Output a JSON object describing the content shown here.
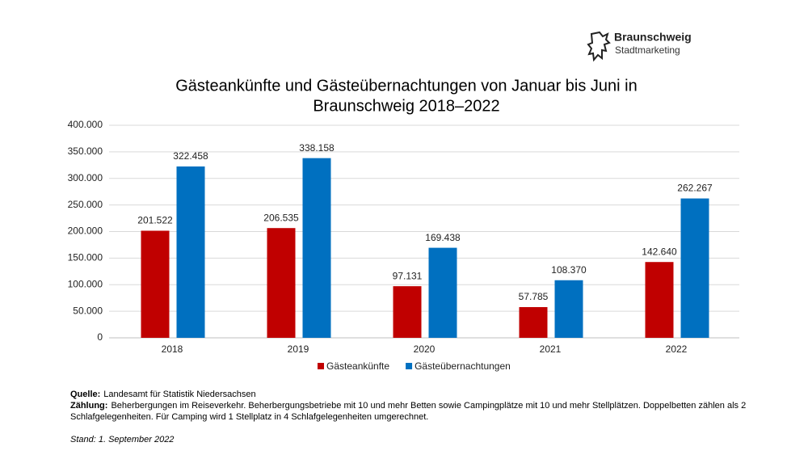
{
  "chart_data": {
    "type": "bar",
    "title": [
      "Gästeankünfte und Gästeübernachtungen von Januar bis Juni in",
      "Braunschweig 2018–2022"
    ],
    "categories": [
      "2018",
      "2019",
      "2020",
      "2021",
      "2022"
    ],
    "series": [
      {
        "name": "Gästeankünfte",
        "color": "#c00000",
        "values": [
          201522,
          206535,
          97131,
          57785,
          142640
        ],
        "value_labels": [
          "201.522",
          "206.535",
          "97.131",
          "57.785",
          "142.640"
        ]
      },
      {
        "name": "Gästeübernachtungen",
        "color": "#0070c0",
        "values": [
          322458,
          338158,
          169438,
          108370,
          262267
        ],
        "value_labels": [
          "322.458",
          "338.158",
          "169.438",
          "108.370",
          "262.267"
        ]
      }
    ],
    "ylim": [
      0,
      400000
    ],
    "yticks": [
      {
        "value": 0,
        "label": "0"
      },
      {
        "value": 50000,
        "label": "50.000"
      },
      {
        "value": 100000,
        "label": "100.000"
      },
      {
        "value": 150000,
        "label": "150.000"
      },
      {
        "value": 200000,
        "label": "200.000"
      },
      {
        "value": 250000,
        "label": "250.000"
      },
      {
        "value": 300000,
        "label": "300.000"
      },
      {
        "value": 350000,
        "label": "350.000"
      },
      {
        "value": 400000,
        "label": "400.000"
      }
    ],
    "grid": true,
    "legend": "bottom"
  },
  "logo": {
    "name": "Braunschweig",
    "subtitle": "Stadtmarketing"
  },
  "footer": {
    "notes": [
      {
        "label": "Quelle:",
        "text": "Landesamt für Statistik Niedersachsen"
      },
      {
        "label": "Zählung:",
        "text": "Beherbergungen im Reiseverkehr. Beherbergungsbetriebe mit 10 und mehr Betten sowie Campingplätze mit 10 und mehr Stellplätzen. Doppelbetten zählen als 2 Schlafgelegenheiten. Für Camping wird 1 Stellplatz in 4 Schlafgelegenheiten umgerechnet."
      }
    ],
    "stand": "Stand: 1. September 2022"
  }
}
